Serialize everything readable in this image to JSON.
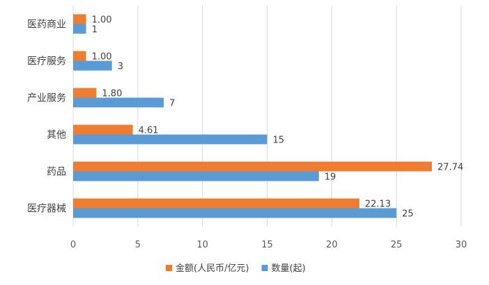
{
  "chart_data": {
    "type": "bar",
    "orientation": "horizontal",
    "categories": [
      "医药商业",
      "医疗服务",
      "产业服务",
      "其他",
      "药品",
      "医疗器械"
    ],
    "series": [
      {
        "name": "金额(人民币/亿元)",
        "color": "#ed7d31",
        "values": [
          1.0,
          1.0,
          1.8,
          4.61,
          27.74,
          22.13
        ],
        "labels": [
          "1.00",
          "1.00",
          "1.80",
          "4.61",
          "27.74",
          "22.13"
        ]
      },
      {
        "name": "数量(起)",
        "color": "#5b9bd5",
        "values": [
          1,
          3,
          7,
          15,
          19,
          25
        ],
        "labels": [
          "1",
          "3",
          "7",
          "15",
          "19",
          "25"
        ]
      }
    ],
    "x_ticks": [
      "0",
      "5",
      "10",
      "15",
      "20",
      "25",
      "30"
    ],
    "xlim": [
      0,
      30
    ],
    "grid": true,
    "legend_position": "bottom",
    "title": "",
    "xlabel": "",
    "ylabel": ""
  }
}
